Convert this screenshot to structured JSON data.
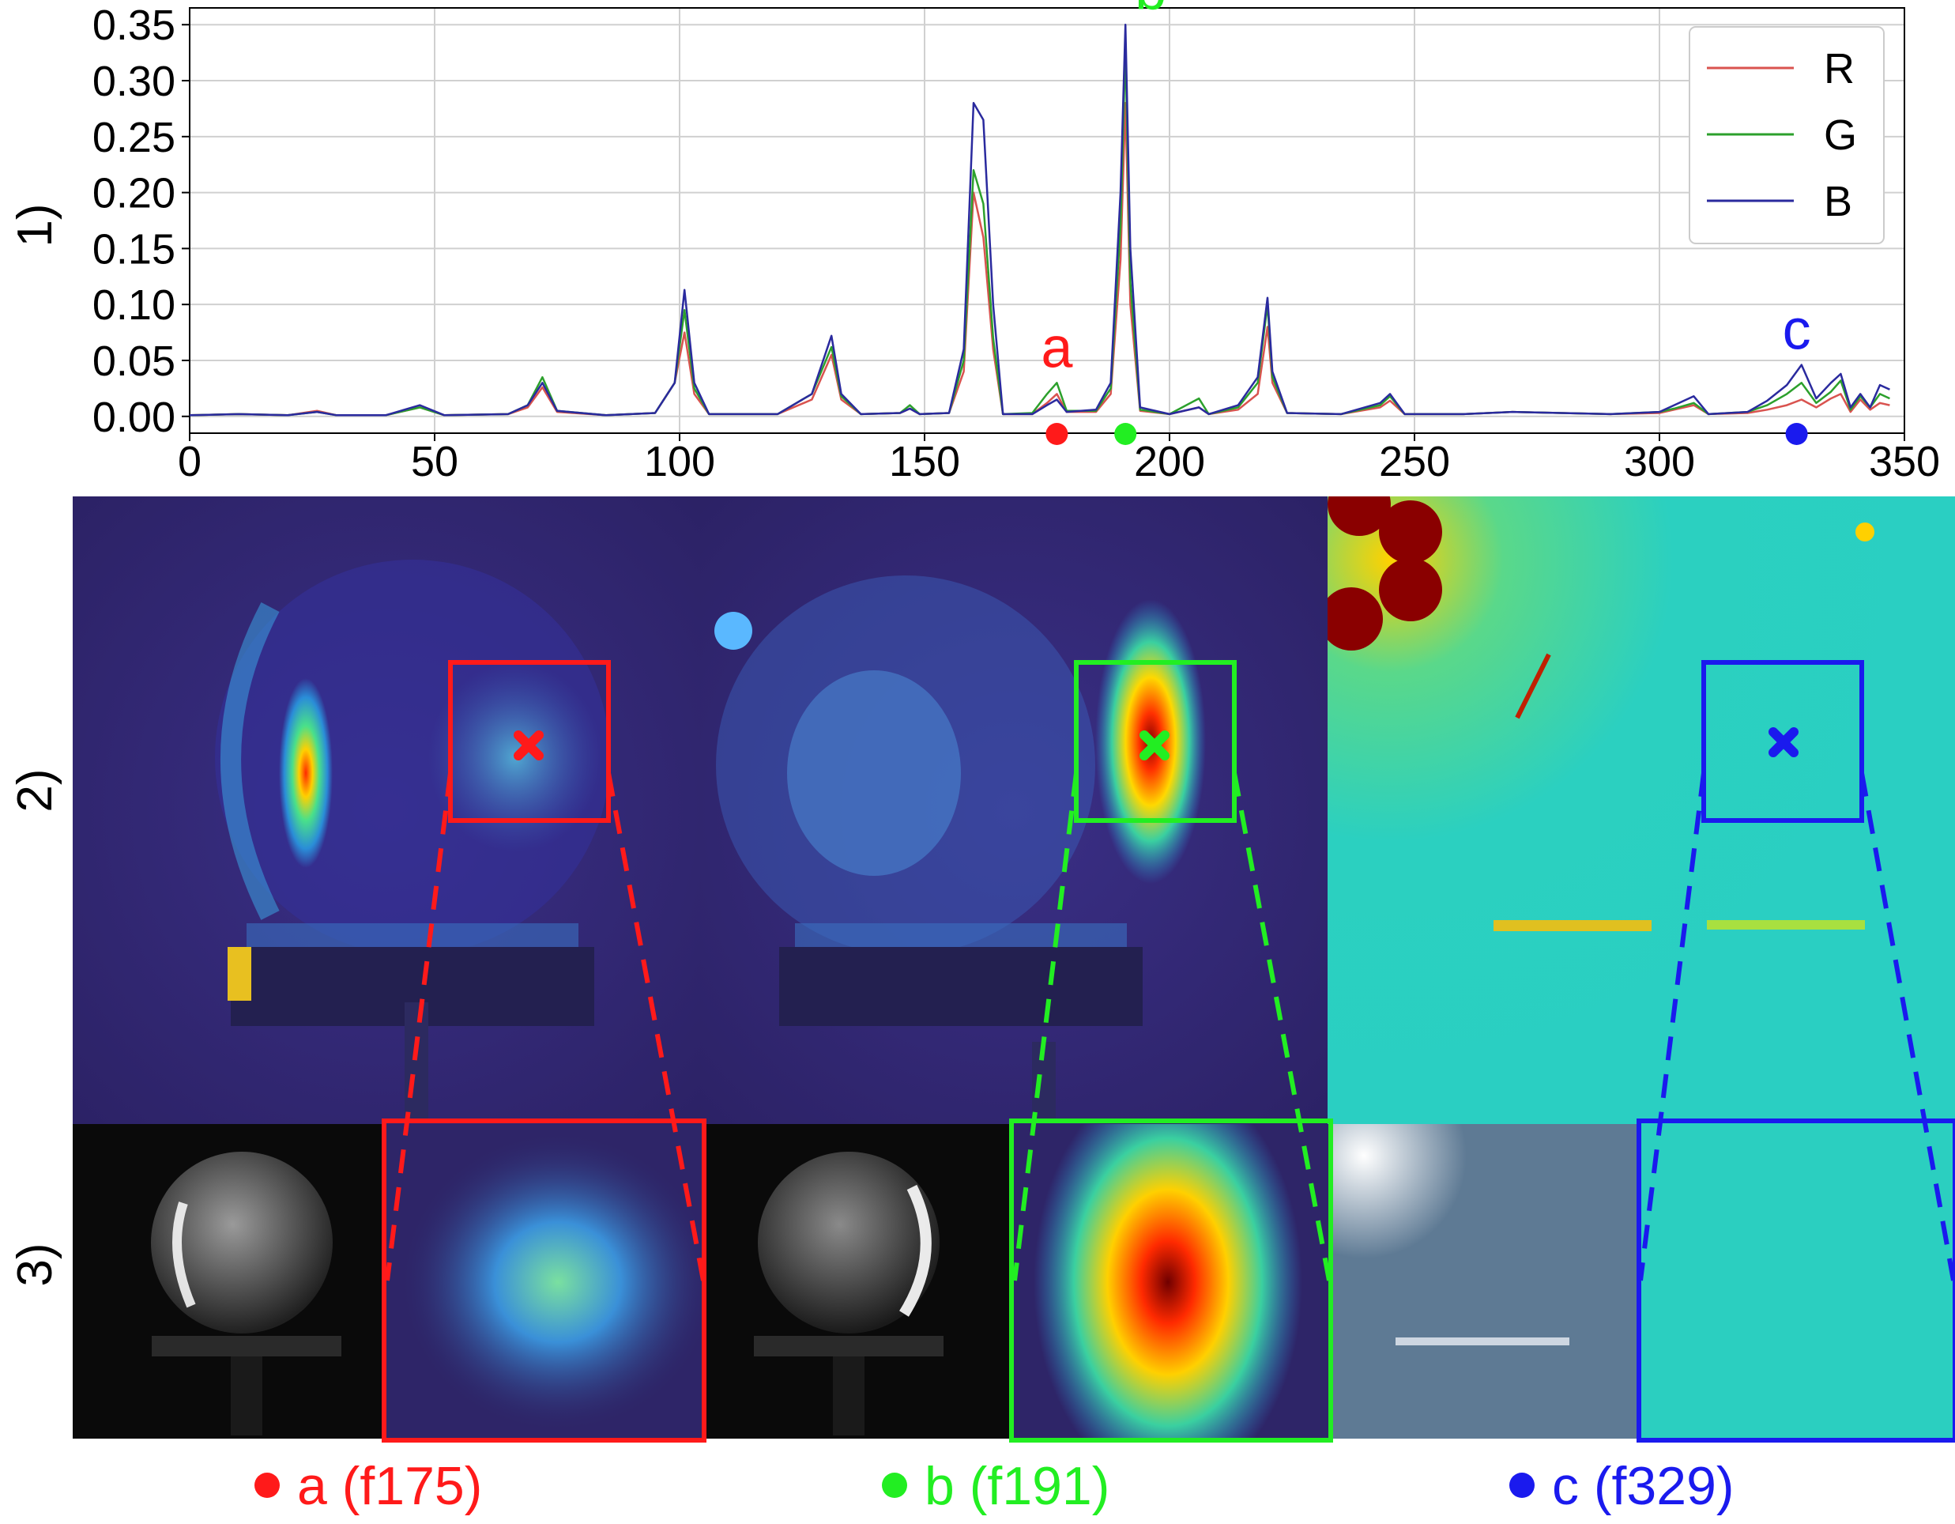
{
  "row_labels": [
    "1)",
    "2)",
    "3)"
  ],
  "colors": {
    "red": "#ff1a1a",
    "green": "#22ee22",
    "blue": "#1a1aee"
  },
  "chart_data": {
    "type": "line",
    "title": "",
    "xlabel": "",
    "ylabel": "",
    "xlim": [
      0,
      350
    ],
    "ylim": [
      -0.015,
      0.365
    ],
    "grid": true,
    "legend_position": "top-right",
    "x_ticks": [
      0,
      50,
      100,
      150,
      200,
      250,
      300,
      350
    ],
    "y_ticks": [
      0.0,
      0.05,
      0.1,
      0.15,
      0.2,
      0.25,
      0.3,
      0.35
    ],
    "x_tick_labels": [
      "0",
      "50",
      "100",
      "150",
      "200",
      "250",
      "300",
      "350"
    ],
    "y_tick_labels": [
      "0.00",
      "0.05",
      "0.10",
      "0.15",
      "0.20",
      "0.25",
      "0.30",
      "0.35"
    ],
    "series": [
      {
        "name": "R",
        "color": "#d9534f",
        "points": [
          [
            0,
            0.001
          ],
          [
            10,
            0.002
          ],
          [
            20,
            0.001
          ],
          [
            26,
            0.005
          ],
          [
            30,
            0.001
          ],
          [
            40,
            0.001
          ],
          [
            47,
            0.008
          ],
          [
            52,
            0.001
          ],
          [
            65,
            0.002
          ],
          [
            69,
            0.008
          ],
          [
            72,
            0.026
          ],
          [
            75,
            0.004
          ],
          [
            85,
            0.001
          ],
          [
            95,
            0.003
          ],
          [
            99,
            0.03
          ],
          [
            101,
            0.075
          ],
          [
            103,
            0.02
          ],
          [
            106,
            0.002
          ],
          [
            120,
            0.002
          ],
          [
            127,
            0.015
          ],
          [
            131,
            0.055
          ],
          [
            133,
            0.015
          ],
          [
            137,
            0.002
          ],
          [
            145,
            0.003
          ],
          [
            147,
            0.007
          ],
          [
            149,
            0.002
          ],
          [
            155,
            0.003
          ],
          [
            158,
            0.04
          ],
          [
            160,
            0.2
          ],
          [
            162,
            0.16
          ],
          [
            164,
            0.06
          ],
          [
            166,
            0.002
          ],
          [
            172,
            0.002
          ],
          [
            175,
            0.012
          ],
          [
            177,
            0.02
          ],
          [
            179,
            0.004
          ],
          [
            185,
            0.004
          ],
          [
            188,
            0.02
          ],
          [
            190,
            0.14
          ],
          [
            191,
            0.28
          ],
          [
            192,
            0.1
          ],
          [
            194,
            0.005
          ],
          [
            200,
            0.002
          ],
          [
            206,
            0.008
          ],
          [
            208,
            0.002
          ],
          [
            214,
            0.006
          ],
          [
            218,
            0.02
          ],
          [
            220,
            0.08
          ],
          [
            221,
            0.03
          ],
          [
            224,
            0.003
          ],
          [
            235,
            0.002
          ],
          [
            243,
            0.008
          ],
          [
            245,
            0.014
          ],
          [
            248,
            0.002
          ],
          [
            260,
            0.002
          ],
          [
            270,
            0.004
          ],
          [
            280,
            0.003
          ],
          [
            290,
            0.002
          ],
          [
            300,
            0.003
          ],
          [
            303,
            0.006
          ],
          [
            307,
            0.01
          ],
          [
            310,
            0.002
          ],
          [
            318,
            0.003
          ],
          [
            322,
            0.006
          ],
          [
            326,
            0.01
          ],
          [
            329,
            0.015
          ],
          [
            332,
            0.008
          ],
          [
            335,
            0.016
          ],
          [
            337,
            0.02
          ],
          [
            339,
            0.004
          ],
          [
            341,
            0.015
          ],
          [
            343,
            0.006
          ],
          [
            345,
            0.012
          ],
          [
            347,
            0.01
          ]
        ]
      },
      {
        "name": "G",
        "color": "#2ca02c",
        "points": [
          [
            0,
            0.001
          ],
          [
            10,
            0.002
          ],
          [
            20,
            0.001
          ],
          [
            26,
            0.004
          ],
          [
            30,
            0.001
          ],
          [
            40,
            0.001
          ],
          [
            47,
            0.008
          ],
          [
            52,
            0.001
          ],
          [
            65,
            0.002
          ],
          [
            69,
            0.01
          ],
          [
            72,
            0.035
          ],
          [
            75,
            0.005
          ],
          [
            85,
            0.001
          ],
          [
            95,
            0.003
          ],
          [
            99,
            0.03
          ],
          [
            101,
            0.095
          ],
          [
            103,
            0.025
          ],
          [
            106,
            0.002
          ],
          [
            120,
            0.002
          ],
          [
            127,
            0.02
          ],
          [
            131,
            0.062
          ],
          [
            133,
            0.018
          ],
          [
            137,
            0.002
          ],
          [
            145,
            0.003
          ],
          [
            147,
            0.01
          ],
          [
            149,
            0.002
          ],
          [
            155,
            0.003
          ],
          [
            158,
            0.05
          ],
          [
            160,
            0.22
          ],
          [
            162,
            0.19
          ],
          [
            164,
            0.07
          ],
          [
            166,
            0.002
          ],
          [
            172,
            0.003
          ],
          [
            175,
            0.02
          ],
          [
            177,
            0.03
          ],
          [
            179,
            0.005
          ],
          [
            185,
            0.005
          ],
          [
            188,
            0.025
          ],
          [
            190,
            0.17
          ],
          [
            191,
            0.33
          ],
          [
            192,
            0.12
          ],
          [
            194,
            0.006
          ],
          [
            200,
            0.002
          ],
          [
            206,
            0.016
          ],
          [
            208,
            0.002
          ],
          [
            214,
            0.008
          ],
          [
            218,
            0.03
          ],
          [
            220,
            0.1
          ],
          [
            221,
            0.035
          ],
          [
            224,
            0.003
          ],
          [
            235,
            0.002
          ],
          [
            243,
            0.01
          ],
          [
            245,
            0.018
          ],
          [
            248,
            0.002
          ],
          [
            260,
            0.002
          ],
          [
            270,
            0.004
          ],
          [
            280,
            0.003
          ],
          [
            290,
            0.002
          ],
          [
            300,
            0.004
          ],
          [
            303,
            0.007
          ],
          [
            307,
            0.012
          ],
          [
            310,
            0.002
          ],
          [
            318,
            0.004
          ],
          [
            322,
            0.01
          ],
          [
            326,
            0.02
          ],
          [
            329,
            0.03
          ],
          [
            332,
            0.012
          ],
          [
            335,
            0.022
          ],
          [
            337,
            0.032
          ],
          [
            339,
            0.006
          ],
          [
            341,
            0.018
          ],
          [
            343,
            0.008
          ],
          [
            345,
            0.02
          ],
          [
            347,
            0.016
          ]
        ]
      },
      {
        "name": "B",
        "color": "#2a2a9e",
        "points": [
          [
            0,
            0.001
          ],
          [
            10,
            0.002
          ],
          [
            20,
            0.001
          ],
          [
            26,
            0.004
          ],
          [
            30,
            0.001
          ],
          [
            40,
            0.001
          ],
          [
            47,
            0.01
          ],
          [
            52,
            0.001
          ],
          [
            65,
            0.002
          ],
          [
            69,
            0.01
          ],
          [
            72,
            0.03
          ],
          [
            75,
            0.005
          ],
          [
            85,
            0.001
          ],
          [
            95,
            0.003
          ],
          [
            99,
            0.03
          ],
          [
            101,
            0.113
          ],
          [
            103,
            0.03
          ],
          [
            106,
            0.002
          ],
          [
            120,
            0.002
          ],
          [
            127,
            0.02
          ],
          [
            131,
            0.072
          ],
          [
            133,
            0.02
          ],
          [
            137,
            0.002
          ],
          [
            145,
            0.003
          ],
          [
            147,
            0.007
          ],
          [
            149,
            0.002
          ],
          [
            155,
            0.003
          ],
          [
            158,
            0.06
          ],
          [
            160,
            0.28
          ],
          [
            162,
            0.265
          ],
          [
            164,
            0.1
          ],
          [
            166,
            0.002
          ],
          [
            172,
            0.002
          ],
          [
            175,
            0.01
          ],
          [
            177,
            0.015
          ],
          [
            179,
            0.004
          ],
          [
            185,
            0.006
          ],
          [
            188,
            0.03
          ],
          [
            190,
            0.2
          ],
          [
            191,
            0.35
          ],
          [
            192,
            0.15
          ],
          [
            194,
            0.008
          ],
          [
            200,
            0.002
          ],
          [
            206,
            0.008
          ],
          [
            208,
            0.002
          ],
          [
            214,
            0.01
          ],
          [
            218,
            0.035
          ],
          [
            220,
            0.106
          ],
          [
            221,
            0.04
          ],
          [
            224,
            0.003
          ],
          [
            235,
            0.002
          ],
          [
            243,
            0.012
          ],
          [
            245,
            0.02
          ],
          [
            248,
            0.002
          ],
          [
            260,
            0.002
          ],
          [
            270,
            0.004
          ],
          [
            280,
            0.003
          ],
          [
            290,
            0.002
          ],
          [
            300,
            0.004
          ],
          [
            303,
            0.01
          ],
          [
            307,
            0.018
          ],
          [
            310,
            0.002
          ],
          [
            318,
            0.004
          ],
          [
            322,
            0.014
          ],
          [
            326,
            0.028
          ],
          [
            329,
            0.046
          ],
          [
            332,
            0.016
          ],
          [
            335,
            0.03
          ],
          [
            337,
            0.038
          ],
          [
            339,
            0.008
          ],
          [
            341,
            0.02
          ],
          [
            343,
            0.008
          ],
          [
            345,
            0.028
          ],
          [
            347,
            0.024
          ]
        ]
      }
    ],
    "markers": [
      {
        "label": "a",
        "frame": 177,
        "peak_value": 0.03,
        "color": "#ff1a1a"
      },
      {
        "label": "b",
        "frame": 191,
        "peak_value": 0.35,
        "color": "#22ee22"
      },
      {
        "label": "c",
        "frame": 328,
        "peak_value": 0.046,
        "color": "#1a1aee"
      }
    ]
  },
  "panels": [
    {
      "key": "a",
      "caption": "a (f175)",
      "color": "#ff1a1a"
    },
    {
      "key": "b",
      "caption": "b (f191)",
      "color": "#22ee22"
    },
    {
      "key": "c",
      "caption": "c (f329)",
      "color": "#1a1aee"
    }
  ]
}
